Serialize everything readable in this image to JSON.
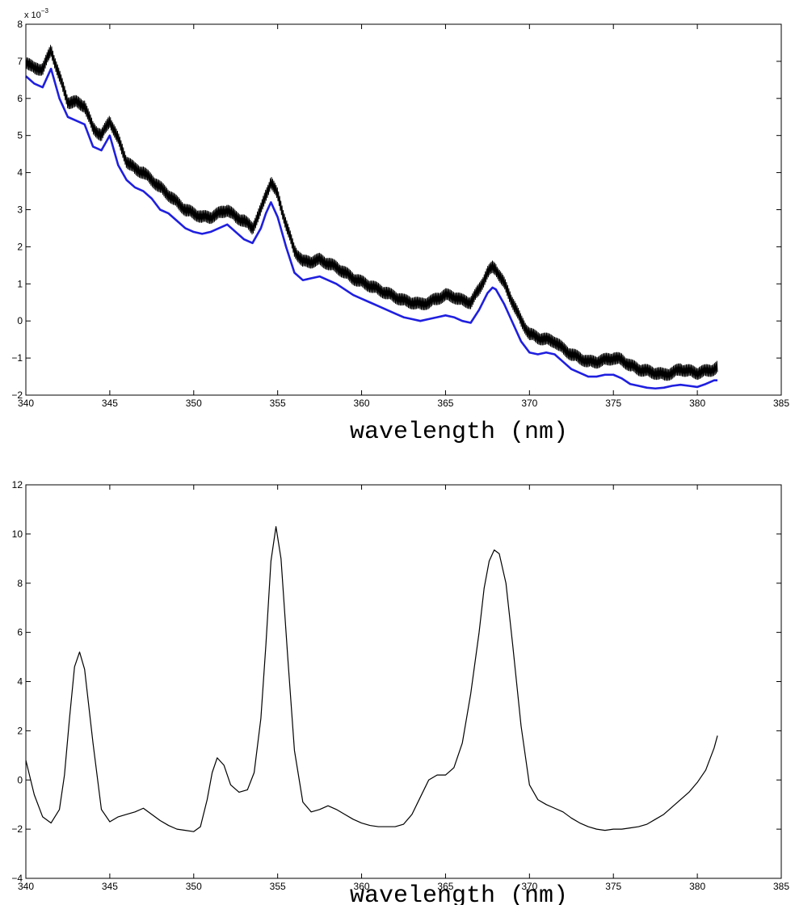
{
  "chart_data": [
    {
      "type": "line",
      "xlabel": "wavelength (nm)",
      "ylabel": "",
      "xlim": [
        340,
        385
      ],
      "ylim": [
        -2,
        8
      ],
      "xticks": [
        340,
        345,
        350,
        355,
        360,
        365,
        370,
        375,
        380,
        385
      ],
      "xtick_labels": [
        "340",
        "345",
        "350",
        "355",
        "360",
        "365",
        "370",
        "375",
        "380",
        "385"
      ],
      "yticks": [
        -2,
        -1,
        0,
        1,
        2,
        3,
        4,
        5,
        6,
        7,
        8
      ],
      "ytick_labels": [
        "−2",
        "−1",
        "0",
        "1",
        "2",
        "3",
        "4",
        "5",
        "6",
        "7",
        "8"
      ],
      "y_exponent_label": "x 10",
      "y_exponent_power": "−3",
      "grid": false,
      "series": [
        {
          "color": "#000000",
          "noise_amplitude": 0.18,
          "x": [
            340,
            340.5,
            341,
            341.5,
            342,
            342.5,
            343,
            343.5,
            344,
            344.5,
            345,
            345.5,
            346,
            346.5,
            347,
            347.5,
            348,
            348.5,
            349,
            349.5,
            350,
            350.5,
            351,
            351.5,
            352,
            352.5,
            353,
            353.5,
            354,
            354.3,
            354.6,
            355,
            355.5,
            356,
            356.5,
            357,
            357.5,
            358,
            358.5,
            359,
            359.5,
            360,
            360.5,
            361,
            361.5,
            362,
            362.5,
            363,
            363.5,
            364,
            364.5,
            365,
            365.5,
            366,
            366.5,
            367,
            367.5,
            367.8,
            368,
            368.5,
            369,
            369.5,
            370,
            370.5,
            371,
            371.5,
            372,
            372.5,
            373,
            373.5,
            374,
            374.5,
            375,
            375.5,
            376,
            376.5,
            377,
            377.5,
            378,
            378.5,
            379,
            379.5,
            380,
            380.5,
            381,
            381.2
          ],
          "y": [
            7.0,
            6.8,
            6.8,
            7.3,
            6.6,
            5.9,
            5.9,
            5.8,
            5.2,
            5.0,
            5.4,
            4.9,
            4.3,
            4.1,
            4.0,
            3.8,
            3.6,
            3.4,
            3.2,
            3.0,
            2.9,
            2.8,
            2.8,
            2.9,
            3.0,
            2.8,
            2.7,
            2.5,
            3.0,
            3.4,
            3.75,
            3.4,
            2.6,
            1.9,
            1.6,
            1.6,
            1.65,
            1.55,
            1.45,
            1.3,
            1.15,
            1.05,
            0.95,
            0.85,
            0.75,
            0.65,
            0.55,
            0.5,
            0.45,
            0.5,
            0.6,
            0.7,
            0.65,
            0.55,
            0.5,
            0.85,
            1.3,
            1.45,
            1.4,
            1.0,
            0.5,
            0.0,
            -0.35,
            -0.45,
            -0.5,
            -0.55,
            -0.75,
            -0.9,
            -1.0,
            -1.1,
            -1.1,
            -1.05,
            -1.0,
            -1.05,
            -1.2,
            -1.3,
            -1.35,
            -1.4,
            -1.45,
            -1.4,
            -1.3,
            -1.35,
            -1.4,
            -1.35,
            -1.3,
            -1.25
          ]
        },
        {
          "color": "#1f1fe0",
          "x": [
            340,
            340.5,
            341,
            341.5,
            342,
            342.5,
            343,
            343.5,
            344,
            344.5,
            345,
            345.5,
            346,
            346.5,
            347,
            347.5,
            348,
            348.5,
            349,
            349.5,
            350,
            350.5,
            351,
            351.5,
            352,
            352.5,
            353,
            353.5,
            354,
            354.3,
            354.6,
            355,
            355.5,
            356,
            356.5,
            357,
            357.5,
            358,
            358.5,
            359,
            359.5,
            360,
            360.5,
            361,
            361.5,
            362,
            362.5,
            363,
            363.5,
            364,
            364.5,
            365,
            365.5,
            366,
            366.5,
            367,
            367.5,
            367.8,
            368,
            368.5,
            369,
            369.5,
            370,
            370.5,
            371,
            371.5,
            372,
            372.5,
            373,
            373.5,
            374,
            374.5,
            375,
            375.5,
            376,
            376.5,
            377,
            377.5,
            378,
            378.5,
            379,
            379.5,
            380,
            380.5,
            381,
            381.2
          ],
          "y": [
            6.6,
            6.4,
            6.3,
            6.8,
            6.0,
            5.5,
            5.4,
            5.3,
            4.7,
            4.6,
            5.0,
            4.2,
            3.8,
            3.6,
            3.5,
            3.3,
            3.0,
            2.9,
            2.7,
            2.5,
            2.4,
            2.35,
            2.4,
            2.5,
            2.6,
            2.4,
            2.2,
            2.1,
            2.5,
            2.9,
            3.2,
            2.8,
            2.0,
            1.3,
            1.1,
            1.15,
            1.2,
            1.1,
            1.0,
            0.85,
            0.7,
            0.6,
            0.5,
            0.4,
            0.3,
            0.2,
            0.1,
            0.05,
            0.0,
            0.05,
            0.1,
            0.15,
            0.1,
            0.0,
            -0.05,
            0.3,
            0.75,
            0.9,
            0.85,
            0.45,
            -0.05,
            -0.55,
            -0.85,
            -0.9,
            -0.85,
            -0.9,
            -1.1,
            -1.3,
            -1.4,
            -1.5,
            -1.5,
            -1.45,
            -1.45,
            -1.55,
            -1.7,
            -1.75,
            -1.8,
            -1.82,
            -1.8,
            -1.75,
            -1.72,
            -1.75,
            -1.78,
            -1.7,
            -1.6,
            -1.6
          ]
        }
      ]
    },
    {
      "type": "line",
      "xlabel": "wavelength (nm)",
      "ylabel": "",
      "xlim": [
        340,
        385
      ],
      "ylim": [
        -4,
        12
      ],
      "xticks": [
        340,
        345,
        350,
        355,
        360,
        365,
        370,
        375,
        380,
        385
      ],
      "xtick_labels": [
        "340",
        "345",
        "350",
        "355",
        "360",
        "365",
        "370",
        "375",
        "380",
        "385"
      ],
      "yticks": [
        -4,
        -2,
        0,
        2,
        4,
        6,
        8,
        10,
        12
      ],
      "ytick_labels": [
        "−4",
        "−2",
        "0",
        "2",
        "4",
        "6",
        "8",
        "10",
        "12"
      ],
      "grid": false,
      "series": [
        {
          "color": "#000000",
          "x": [
            340,
            340.5,
            341,
            341.5,
            342,
            342.3,
            342.6,
            342.9,
            343.2,
            343.5,
            344,
            344.5,
            345,
            345.5,
            346,
            346.5,
            347,
            347.5,
            348,
            348.5,
            349,
            349.5,
            350,
            350.4,
            350.8,
            351.1,
            351.4,
            351.8,
            352.2,
            352.7,
            353.2,
            353.6,
            354,
            354.3,
            354.6,
            354.9,
            355.2,
            355.6,
            356,
            356.5,
            357,
            357.5,
            358,
            358.5,
            359,
            359.5,
            360,
            360.5,
            361,
            361.5,
            362,
            362.5,
            363,
            363.5,
            364,
            364.5,
            365,
            365.5,
            366,
            366.5,
            367,
            367.3,
            367.6,
            367.9,
            368.2,
            368.6,
            369,
            369.5,
            370,
            370.5,
            371,
            371.5,
            372,
            372.5,
            373,
            373.5,
            374,
            374.5,
            375,
            375.5,
            376,
            376.5,
            377,
            377.5,
            378,
            378.5,
            379,
            379.5,
            380,
            380.5,
            381,
            381.2
          ],
          "y": [
            0.8,
            -0.6,
            -1.5,
            -1.75,
            -1.2,
            0.2,
            2.5,
            4.6,
            5.2,
            4.5,
            1.5,
            -1.2,
            -1.7,
            -1.5,
            -1.4,
            -1.3,
            -1.15,
            -1.4,
            -1.65,
            -1.85,
            -2.0,
            -2.05,
            -2.1,
            -1.9,
            -0.8,
            0.3,
            0.9,
            0.6,
            -0.2,
            -0.5,
            -0.4,
            0.3,
            2.5,
            5.5,
            8.9,
            10.3,
            9.0,
            5.0,
            1.2,
            -0.9,
            -1.3,
            -1.2,
            -1.05,
            -1.2,
            -1.4,
            -1.6,
            -1.75,
            -1.85,
            -1.9,
            -1.9,
            -1.9,
            -1.8,
            -1.4,
            -0.7,
            0.0,
            0.2,
            0.2,
            0.5,
            1.5,
            3.5,
            6.0,
            7.8,
            8.9,
            9.35,
            9.2,
            8.0,
            5.5,
            2.2,
            -0.2,
            -0.8,
            -1.0,
            -1.15,
            -1.3,
            -1.55,
            -1.75,
            -1.9,
            -2.0,
            -2.05,
            -2.0,
            -2.0,
            -1.95,
            -1.9,
            -1.8,
            -1.6,
            -1.4,
            -1.1,
            -0.8,
            -0.5,
            -0.1,
            0.4,
            1.3,
            1.8
          ]
        }
      ]
    }
  ]
}
